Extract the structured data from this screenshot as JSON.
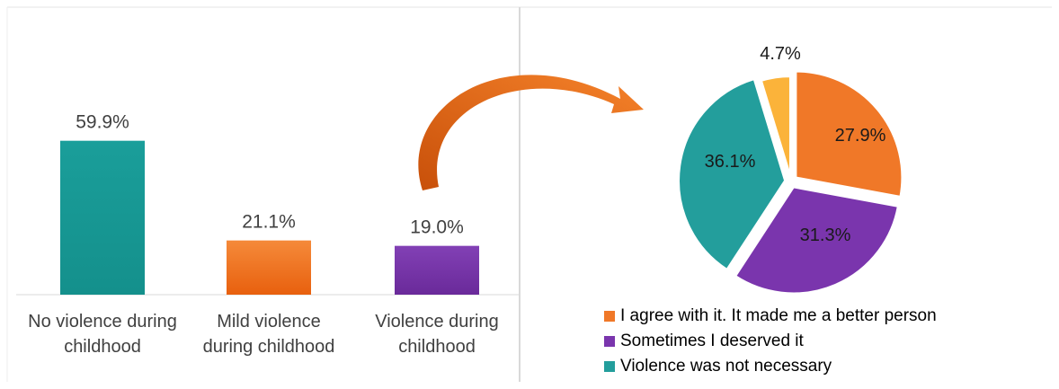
{
  "chart_data": [
    {
      "type": "bar",
      "categories": [
        [
          "No violence during",
          "childhood"
        ],
        [
          "Mild violence",
          "during childhood"
        ],
        [
          "Violence during",
          "childhood"
        ]
      ],
      "values": [
        59.9,
        21.1,
        19.0
      ],
      "value_labels": [
        "59.9%",
        "21.1%",
        "19.0%"
      ],
      "colors": [
        "#1a9e9a",
        "#f07020",
        "#7030a0"
      ],
      "ylim": [
        0,
        100
      ]
    },
    {
      "type": "pie",
      "slices": [
        {
          "name": "I agree with it. It made me a better person",
          "value": 27.9,
          "label": "27.9%",
          "color": "#f07828"
        },
        {
          "name": "Sometimes I deserved it",
          "value": 31.3,
          "label": "31.3%",
          "color": "#7a35ad"
        },
        {
          "name": "Violence was not necessary",
          "value": 36.1,
          "label": "36.1%",
          "color": "#239e9c"
        },
        {
          "name": "",
          "value": 4.7,
          "label": "4.7%",
          "color": "#fbb33a"
        }
      ],
      "legend_position": "bottom"
    }
  ],
  "connector": {
    "color": "#e8651a",
    "direction": "from third bar to pie"
  }
}
